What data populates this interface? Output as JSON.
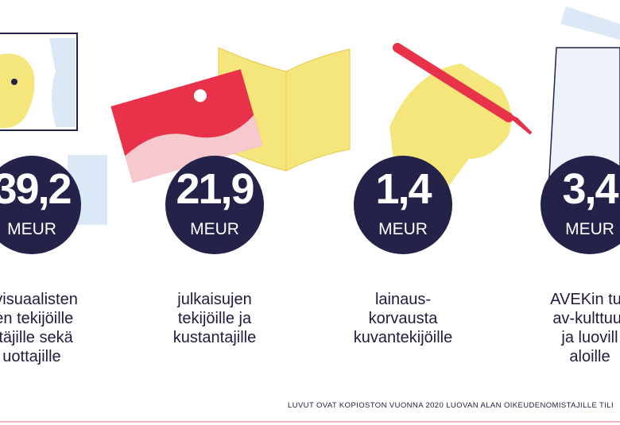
{
  "items": [
    {
      "value": "39,2",
      "unit": "MEUR",
      "lines": [
        "ovisuaalisten",
        "ten tekijöille",
        "ittäjille sekä",
        "uottajille"
      ]
    },
    {
      "value": "21,9",
      "unit": "MEUR",
      "lines": [
        "julkaisujen",
        "tekijöille ja",
        "kustantajille"
      ]
    },
    {
      "value": "1,4",
      "unit": "MEUR",
      "lines": [
        "lainaus-",
        "korvausta",
        "kuvantekijöille"
      ]
    },
    {
      "value": "3,4",
      "unit": "MEUR",
      "lines": [
        "AVEKin tuk",
        "av-kulttuur",
        "ja luovill",
        "aloille"
      ]
    }
  ],
  "footer": "LUVUT OVAT KOPIOSTON VUONNA 2020 LUOVAN ALAN OIKEUDENOMISTAJILLE TILI"
}
